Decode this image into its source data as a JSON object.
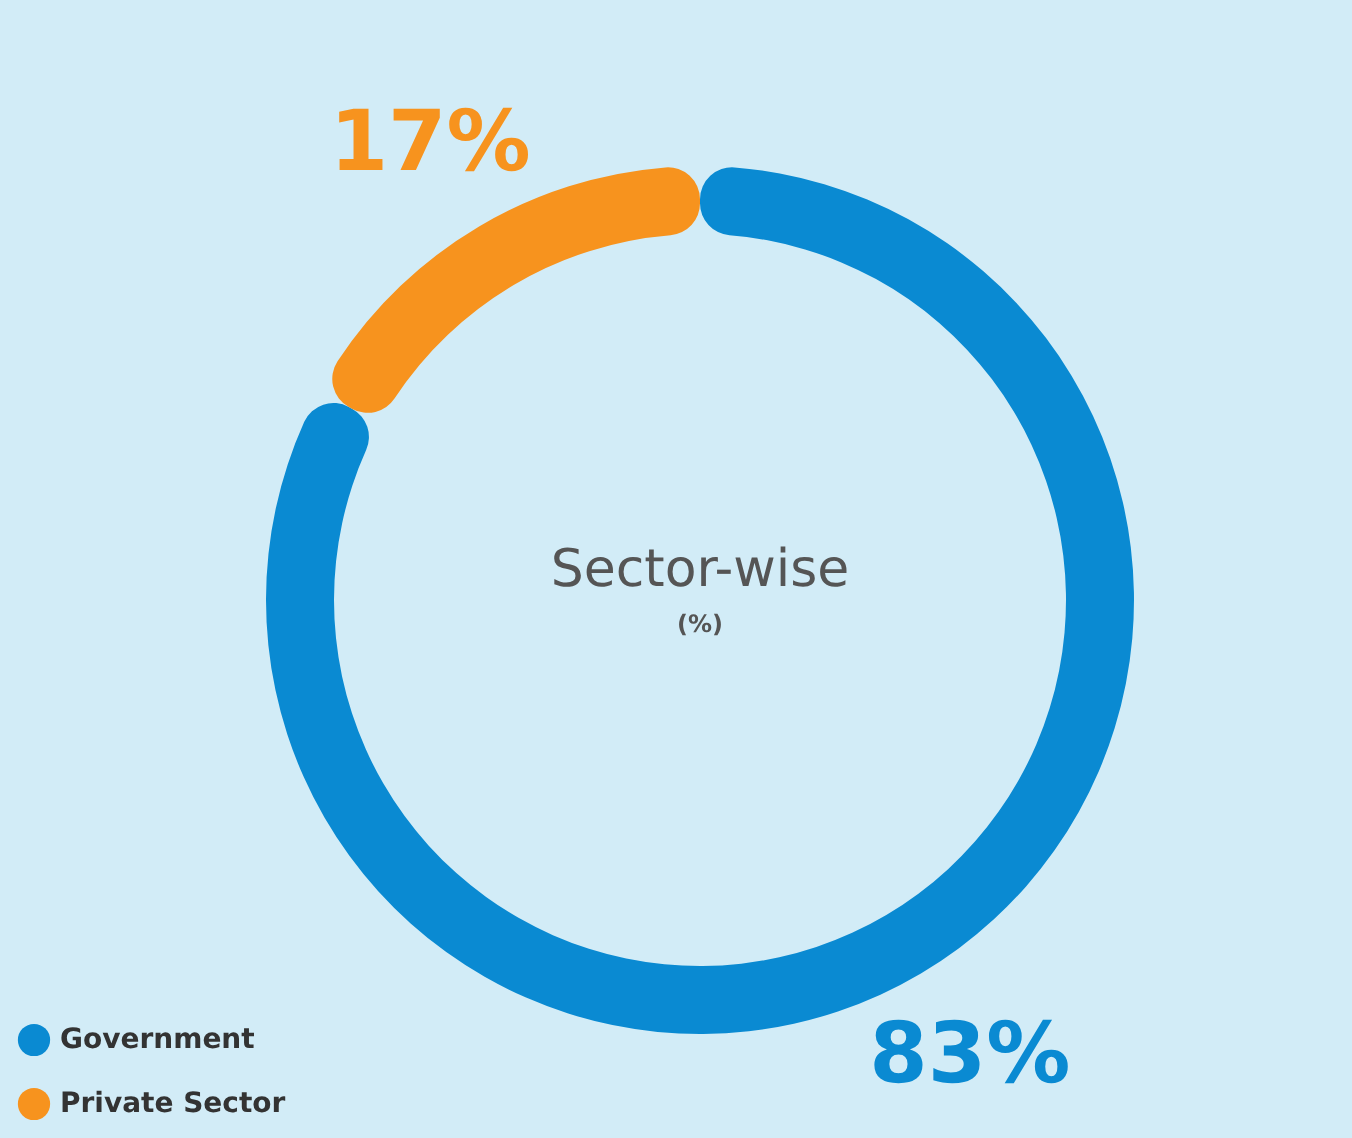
{
  "chart_data": {
    "type": "donut",
    "title": "Sector-wise",
    "subtitle": "(%)",
    "categories": [
      "Government",
      "Private Sector"
    ],
    "values": [
      83,
      17
    ],
    "colors": [
      "#0a8ad2",
      "#f7931e"
    ],
    "value_labels": [
      "83%",
      "17%"
    ],
    "legend": "bottom left"
  }
}
